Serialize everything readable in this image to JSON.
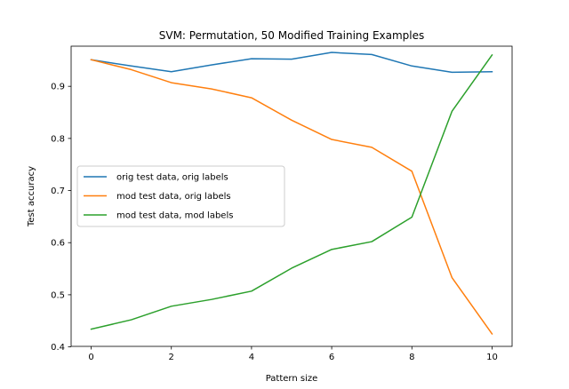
{
  "chart_data": {
    "type": "line",
    "title": "SVM: Permutation, 50 Modified Training Examples",
    "xlabel": "Pattern size",
    "ylabel": "Test accuracy",
    "x": [
      0,
      1,
      2,
      3,
      4,
      5,
      6,
      7,
      8,
      9,
      10
    ],
    "xlim": [
      -0.5,
      10.5
    ],
    "ylim": [
      0.401,
      0.977
    ],
    "xticks": [
      0,
      2,
      4,
      6,
      8,
      10
    ],
    "yticks": [
      0.4,
      0.5,
      0.6,
      0.7,
      0.8,
      0.9
    ],
    "xtick_labels": [
      "0",
      "2",
      "4",
      "6",
      "8",
      "10"
    ],
    "ytick_labels": [
      "0.4",
      "0.5",
      "0.6",
      "0.7",
      "0.8",
      "0.9"
    ],
    "grid": false,
    "legend_position": "center-left",
    "series": [
      {
        "name": "orig test data, orig labels",
        "color": "#1f77b4",
        "values": [
          0.951,
          0.939,
          0.928,
          0.941,
          0.953,
          0.952,
          0.965,
          0.961,
          0.939,
          0.927,
          0.928
        ]
      },
      {
        "name": "mod test data, orig labels",
        "color": "#ff7f0e",
        "values": [
          0.951,
          0.932,
          0.907,
          0.895,
          0.878,
          0.835,
          0.798,
          0.783,
          0.737,
          0.533,
          0.425
        ]
      },
      {
        "name": "mod test data, mod labels",
        "color": "#2ca02c",
        "values": [
          0.434,
          0.452,
          0.478,
          0.491,
          0.507,
          0.551,
          0.587,
          0.602,
          0.649,
          0.852,
          0.96
        ]
      }
    ]
  }
}
